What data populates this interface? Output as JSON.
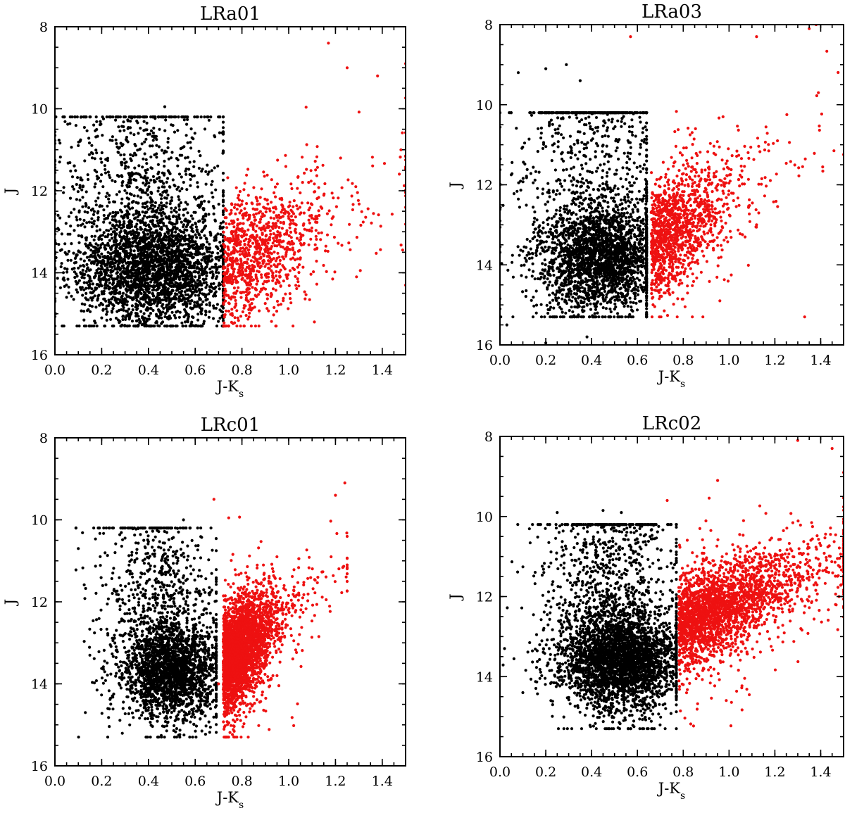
{
  "colors": {
    "main_sequence": "#000000",
    "giants": "#ee1111",
    "axes": "#000000"
  },
  "chart_data": [
    {
      "type": "scatter",
      "title": "LRa01",
      "xlabel": "J-K",
      "xlabel_sub": "s",
      "ylabel": "J",
      "xlim": [
        0.0,
        1.5
      ],
      "ylim": [
        16,
        8
      ],
      "y_inverted": true,
      "x_ticks": [
        "0.0",
        "0.2",
        "0.4",
        "0.6",
        "0.8",
        "1.0",
        "1.2",
        "1.4"
      ],
      "y_ticks": [
        "8",
        "10",
        "12",
        "14",
        "16"
      ],
      "series": [
        {
          "color": "black",
          "n_points": 3400,
          "x_range": [
            0.0,
            0.72
          ],
          "cluster": {
            "x": 0.42,
            "y": 13.9
          },
          "sample_points": [
            [
              0.02,
              11.3
            ],
            [
              0.05,
              14.6
            ],
            [
              0.1,
              10.9
            ],
            [
              0.35,
              10.3
            ],
            [
              0.47,
              9.95
            ],
            [
              0.43,
              14.7
            ],
            [
              0.2,
              15.1
            ],
            [
              0.6,
              14.1
            ],
            [
              0.7,
              14.0
            ]
          ]
        },
        {
          "color": "red",
          "n_points": 1050,
          "x_range": [
            0.57,
            1.5
          ],
          "cluster": {
            "x": 0.82,
            "y": 12.5
          },
          "sample_points": [
            [
              1.17,
              8.4
            ],
            [
              1.25,
              9.0
            ],
            [
              1.5,
              8.9
            ],
            [
              1.38,
              9.2
            ],
            [
              1.11,
              15.2
            ],
            [
              0.81,
              14.8
            ],
            [
              1.29,
              14.1
            ],
            [
              1.48,
              11.0
            ]
          ]
        }
      ]
    },
    {
      "type": "scatter",
      "title": "LRa03",
      "xlabel": "J-K",
      "xlabel_sub": "s",
      "ylabel": "J",
      "xlim": [
        0.0,
        1.5
      ],
      "ylim": [
        16,
        8
      ],
      "y_inverted": true,
      "x_ticks": [
        "0.0",
        "0.2",
        "0.4",
        "0.6",
        "0.8",
        "1.0",
        "1.2",
        "1.4"
      ],
      "y_ticks": [
        "8",
        "10",
        "12",
        "14",
        "16"
      ],
      "series": [
        {
          "color": "black",
          "n_points": 3000,
          "x_range": [
            0.0,
            0.64
          ],
          "cluster": {
            "x": 0.45,
            "y": 13.8
          },
          "sample_points": [
            [
              0.08,
              9.2
            ],
            [
              0.2,
              9.1
            ],
            [
              0.29,
              9.0
            ],
            [
              0.35,
              9.4
            ],
            [
              0.0,
              15.1
            ],
            [
              0.03,
              15.5
            ],
            [
              0.38,
              15.8
            ],
            [
              0.2,
              15.95
            ]
          ]
        },
        {
          "color": "red",
          "n_points": 1300,
          "x_range": [
            0.56,
            1.5
          ],
          "cluster": {
            "x": 0.72,
            "y": 12.9
          },
          "sample_points": [
            [
              0.57,
              8.3
            ],
            [
              1.12,
              8.3
            ],
            [
              1.35,
              8.1
            ],
            [
              1.38,
              8.0
            ],
            [
              1.39,
              9.7
            ],
            [
              0.96,
              14.9
            ],
            [
              1.33,
              15.3
            ],
            [
              1.12,
              13.0
            ]
          ]
        }
      ]
    },
    {
      "type": "scatter",
      "title": "LRc01",
      "xlabel": "J-K",
      "xlabel_sub": "s",
      "ylabel": "J",
      "xlim": [
        0.0,
        1.5
      ],
      "ylim": [
        16,
        8
      ],
      "y_inverted": true,
      "x_ticks": [
        "0.0",
        "0.2",
        "0.4",
        "0.6",
        "0.8",
        "1.0",
        "1.2",
        "1.4"
      ],
      "y_ticks": [
        "8",
        "10",
        "12",
        "14",
        "16"
      ],
      "series": [
        {
          "color": "black",
          "n_points": 2700,
          "x_range": [
            0.09,
            0.69
          ],
          "cluster": {
            "x": 0.5,
            "y": 13.7
          },
          "sample_points": [
            [
              0.1,
              10.7
            ],
            [
              0.13,
              14.7
            ],
            [
              0.32,
              15.0
            ],
            [
              0.52,
              14.8
            ],
            [
              0.5,
              10.2
            ],
            [
              0.55,
              10.0
            ],
            [
              0.38,
              10.5
            ]
          ]
        },
        {
          "color": "red",
          "n_points": 2900,
          "x_range": [
            0.67,
            1.25
          ],
          "cluster": {
            "x": 0.83,
            "y": 12.8
          },
          "sample_points": [
            [
              1.24,
              9.1
            ],
            [
              1.2,
              9.4
            ],
            [
              0.68,
              9.5
            ],
            [
              0.7,
              14.0
            ],
            [
              1.25,
              11.1
            ],
            [
              0.95,
              13.8
            ]
          ]
        }
      ]
    },
    {
      "type": "scatter",
      "title": "LRc02",
      "xlabel": "J-K",
      "xlabel_sub": "s",
      "ylabel": "J",
      "xlim": [
        0.0,
        1.5
      ],
      "ylim": [
        16,
        8
      ],
      "y_inverted": true,
      "x_ticks": [
        "0.0",
        "0.2",
        "0.4",
        "0.6",
        "0.8",
        "1.0",
        "1.2",
        "1.4"
      ],
      "y_ticks": [
        "8",
        "10",
        "12",
        "14",
        "16"
      ],
      "series": [
        {
          "color": "black",
          "n_points": 3800,
          "x_range": [
            0.0,
            0.77
          ],
          "cluster": {
            "x": 0.52,
            "y": 13.6
          },
          "sample_points": [
            [
              0.02,
              13.3
            ],
            [
              0.1,
              14.4
            ],
            [
              0.23,
              14.7
            ],
            [
              0.25,
              9.9
            ],
            [
              0.45,
              9.85
            ],
            [
              0.53,
              9.9
            ],
            [
              0.75,
              14.0
            ]
          ]
        },
        {
          "color": "red",
          "n_points": 2500,
          "x_range": [
            0.72,
            1.5
          ],
          "cluster": {
            "x": 0.88,
            "y": 12.3
          },
          "sample_points": [
            [
              1.3,
              8.1
            ],
            [
              1.45,
              8.3
            ],
            [
              1.5,
              8.9
            ],
            [
              0.95,
              9.1
            ],
            [
              0.73,
              9.6
            ],
            [
              0.8,
              14.2
            ],
            [
              1.48,
              12.0
            ]
          ]
        }
      ]
    }
  ]
}
